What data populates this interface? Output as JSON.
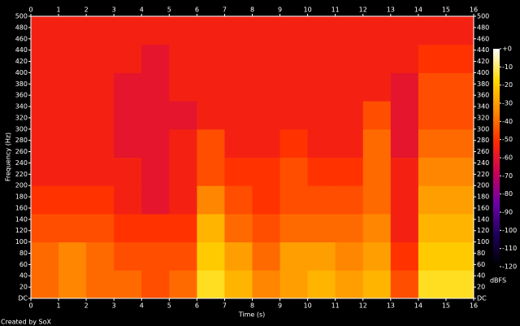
{
  "chart_data": {
    "type": "heatmap",
    "xlabel": "Time (s)",
    "ylabel": "Frequency (Hz)",
    "footer": "Created by SoX",
    "colorbar_label": "dBFS",
    "x_bins": [
      0,
      1,
      2,
      3,
      4,
      5,
      6,
      7,
      8,
      9,
      10,
      11,
      12,
      13,
      14,
      15,
      16
    ],
    "y_bins": [
      0,
      50,
      100,
      150,
      200,
      250,
      300,
      350,
      400,
      450,
      500
    ],
    "values": [
      [
        -40,
        -35,
        -40,
        -40,
        -45,
        -40,
        -15,
        -25,
        -35,
        -30,
        -25,
        -30,
        -25,
        -45,
        -15,
        -15
      ],
      [
        -40,
        -35,
        -40,
        -45,
        -45,
        -45,
        -20,
        -30,
        -40,
        -30,
        -30,
        -35,
        -30,
        -50,
        -20,
        -20
      ],
      [
        -45,
        -45,
        -45,
        -50,
        -50,
        -50,
        -25,
        -40,
        -45,
        -40,
        -40,
        -40,
        -35,
        -55,
        -25,
        -25
      ],
      [
        -50,
        -50,
        -50,
        -55,
        -60,
        -55,
        -35,
        -45,
        -50,
        -45,
        -45,
        -45,
        -40,
        -55,
        -30,
        -30
      ],
      [
        -55,
        -55,
        -55,
        -55,
        -60,
        -55,
        -45,
        -50,
        -50,
        -45,
        -50,
        -50,
        -40,
        -55,
        -35,
        -35
      ],
      [
        -55,
        -55,
        -55,
        -60,
        -60,
        -55,
        -45,
        -55,
        -55,
        -50,
        -55,
        -55,
        -40,
        -60,
        -40,
        -40
      ],
      [
        -55,
        -55,
        -55,
        -60,
        -60,
        -60,
        -55,
        -55,
        -55,
        -55,
        -55,
        -55,
        -45,
        -60,
        -45,
        -45
      ],
      [
        -55,
        -55,
        -55,
        -60,
        -60,
        -55,
        -55,
        -55,
        -55,
        -55,
        -55,
        -55,
        -55,
        -60,
        -45,
        -45
      ],
      [
        -55,
        -55,
        -55,
        -55,
        -60,
        -55,
        -55,
        -55,
        -55,
        -55,
        -55,
        -55,
        -55,
        -55,
        -50,
        -50
      ],
      [
        -55,
        -55,
        -55,
        -55,
        -55,
        -55,
        -55,
        -55,
        -55,
        -55,
        -55,
        -55,
        -55,
        -55,
        -55,
        -55
      ]
    ],
    "xlim": [
      0,
      16
    ],
    "xticks": [
      0,
      1,
      2,
      3,
      4,
      5,
      6,
      7,
      8,
      9,
      10,
      11,
      12,
      13,
      14,
      15,
      16
    ],
    "ylim": [
      0,
      500
    ],
    "yticks": [
      {
        "value": 0,
        "label": "DC"
      },
      20,
      40,
      60,
      80,
      100,
      120,
      140,
      160,
      180,
      200,
      220,
      240,
      260,
      280,
      300,
      320,
      340,
      360,
      380,
      400,
      420,
      440,
      460,
      480,
      500
    ],
    "clim": [
      -120,
      0
    ],
    "cticks": [
      {
        "value": 0,
        "label": "+0"
      },
      -10,
      -20,
      -30,
      -40,
      -50,
      -60,
      -70,
      -80,
      -90,
      -100,
      -110,
      -120
    ],
    "colorscale": [
      "#000000",
      "#1c0058",
      "#6a00a8",
      "#c8005a",
      "#ff2a00",
      "#ff8a00",
      "#ffd800",
      "#ffffff"
    ]
  }
}
